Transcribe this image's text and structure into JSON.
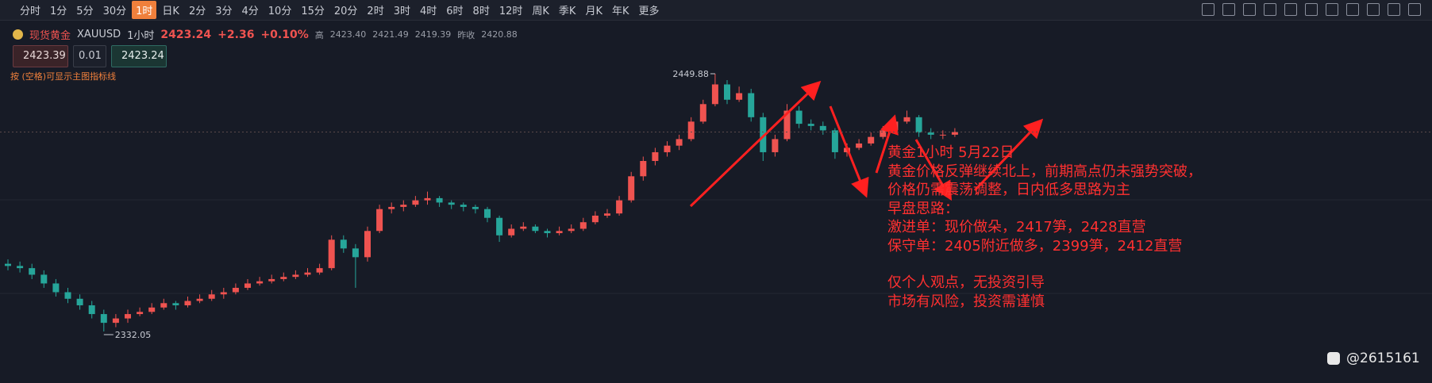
{
  "toolbar": {
    "timeframes": [
      "分时",
      "1分",
      "5分",
      "30分",
      "1时",
      "日K",
      "2分",
      "3分",
      "4分",
      "10分",
      "15分",
      "20分",
      "2时",
      "3时",
      "4时",
      "6时",
      "8时",
      "12时",
      "周K",
      "季K",
      "月K",
      "年K",
      "更多"
    ],
    "active": "1时"
  },
  "info": {
    "symbol_name": "现货黄金",
    "symbol": "XAUUSD",
    "interval": "1小时",
    "price": "2423.24",
    "change": "+2.36",
    "change_pct": "+0.10%",
    "high_label": "高",
    "high": "2423.40",
    "open": "2421.49",
    "low": "2419.39",
    "prev_close_label": "昨收",
    "prev_close": "2420.88"
  },
  "order": {
    "sell": "2423.39",
    "quantity": "0.01",
    "buy": "2423.24",
    "hint": "按 (空格)可显示主图指标线"
  },
  "chart": {
    "high_mark": 2449.88,
    "low_mark": 2332.05,
    "current": 2423.24,
    "up_color": "#ef5350",
    "down_color": "#26a69a",
    "candles": [
      [
        2363,
        2365,
        2360,
        2362
      ],
      [
        2362,
        2364,
        2359,
        2361
      ],
      [
        2361,
        2363,
        2356,
        2358
      ],
      [
        2358,
        2360,
        2352,
        2354
      ],
      [
        2354,
        2356,
        2348,
        2350
      ],
      [
        2350,
        2352,
        2345,
        2347
      ],
      [
        2347,
        2349,
        2342,
        2344
      ],
      [
        2344,
        2346,
        2338,
        2340
      ],
      [
        2340,
        2342,
        2332.05,
        2336
      ],
      [
        2336,
        2340,
        2334,
        2338
      ],
      [
        2338,
        2342,
        2336,
        2340
      ],
      [
        2340,
        2343,
        2339,
        2341
      ],
      [
        2341,
        2345,
        2340,
        2343
      ],
      [
        2343,
        2347,
        2342,
        2345
      ],
      [
        2345,
        2346,
        2342,
        2344
      ],
      [
        2344,
        2348,
        2343,
        2346
      ],
      [
        2346,
        2349,
        2345,
        2347
      ],
      [
        2347,
        2351,
        2346,
        2349
      ],
      [
        2349,
        2352,
        2347,
        2350
      ],
      [
        2350,
        2354,
        2349,
        2352
      ],
      [
        2352,
        2356,
        2351,
        2354
      ],
      [
        2354,
        2357,
        2353,
        2355
      ],
      [
        2355,
        2358,
        2354,
        2356
      ],
      [
        2356,
        2359,
        2355,
        2357
      ],
      [
        2357,
        2360,
        2356,
        2358
      ],
      [
        2358,
        2361,
        2357,
        2359
      ],
      [
        2359,
        2363,
        2358,
        2361
      ],
      [
        2361,
        2376,
        2360,
        2374
      ],
      [
        2374,
        2376,
        2368,
        2370
      ],
      [
        2370,
        2372,
        2352,
        2366
      ],
      [
        2366,
        2380,
        2364,
        2378
      ],
      [
        2378,
        2390,
        2377,
        2388
      ],
      [
        2388,
        2391,
        2386,
        2389
      ],
      [
        2389,
        2392,
        2387,
        2390
      ],
      [
        2390,
        2394,
        2389,
        2392
      ],
      [
        2392,
        2396,
        2390,
        2393
      ],
      [
        2393,
        2394,
        2389,
        2391
      ],
      [
        2391,
        2392,
        2388,
        2390
      ],
      [
        2390,
        2391,
        2387,
        2389
      ],
      [
        2389,
        2390,
        2386,
        2388
      ],
      [
        2388,
        2389,
        2382,
        2384
      ],
      [
        2384,
        2385,
        2373,
        2376
      ],
      [
        2376,
        2381,
        2375,
        2379
      ],
      [
        2379,
        2382,
        2378,
        2380
      ],
      [
        2380,
        2381,
        2377,
        2378
      ],
      [
        2378,
        2379,
        2375,
        2377
      ],
      [
        2377,
        2380,
        2376,
        2378
      ],
      [
        2378,
        2381,
        2377,
        2379
      ],
      [
        2379,
        2384,
        2378,
        2382
      ],
      [
        2382,
        2387,
        2381,
        2385
      ],
      [
        2385,
        2388,
        2384,
        2386
      ],
      [
        2386,
        2394,
        2385,
        2392
      ],
      [
        2392,
        2405,
        2391,
        2403
      ],
      [
        2403,
        2412,
        2401,
        2410
      ],
      [
        2410,
        2416,
        2408,
        2414
      ],
      [
        2414,
        2419,
        2412,
        2417
      ],
      [
        2417,
        2422,
        2415,
        2420
      ],
      [
        2420,
        2430,
        2419,
        2428
      ],
      [
        2428,
        2438,
        2427,
        2436
      ],
      [
        2436,
        2449.88,
        2435,
        2445
      ],
      [
        2445,
        2447,
        2436,
        2438
      ],
      [
        2438,
        2444,
        2437,
        2441
      ],
      [
        2441,
        2443,
        2428,
        2430
      ],
      [
        2430,
        2432,
        2410,
        2414
      ],
      [
        2414,
        2422,
        2412,
        2420
      ],
      [
        2420,
        2436,
        2419,
        2433
      ],
      [
        2433,
        2435,
        2425,
        2427
      ],
      [
        2427,
        2429,
        2424,
        2426
      ],
      [
        2426,
        2428,
        2422,
        2424
      ],
      [
        2424,
        2425,
        2411,
        2414
      ],
      [
        2414,
        2418,
        2412,
        2416
      ],
      [
        2416,
        2420,
        2415,
        2418
      ],
      [
        2418,
        2423,
        2417,
        2421
      ],
      [
        2421,
        2426,
        2420,
        2424
      ],
      [
        2424,
        2430,
        2423,
        2428
      ],
      [
        2428,
        2433,
        2427,
        2430
      ],
      [
        2430,
        2431,
        2421,
        2423
      ],
      [
        2423,
        2425,
        2420,
        2422
      ],
      [
        2422,
        2424,
        2420,
        2422
      ],
      [
        2422,
        2425,
        2421,
        2423.24
      ]
    ]
  },
  "annotation": {
    "lines": [
      "黄金1小时 5月22日",
      "黄金价格反弹继续北上，前期高点仍未强势突破，",
      "价格仍需震荡调整，日内低多思路为主",
      "早盘思路：",
      "激进单：现价做朵，2417笋，2428直营",
      "保守单：2405附近做多，2399笋，2412直营"
    ],
    "disclaimer": [
      "仅个人观点，无投资引导",
      "市场有风险，投资需谨慎"
    ]
  },
  "watermark": "@2615161"
}
